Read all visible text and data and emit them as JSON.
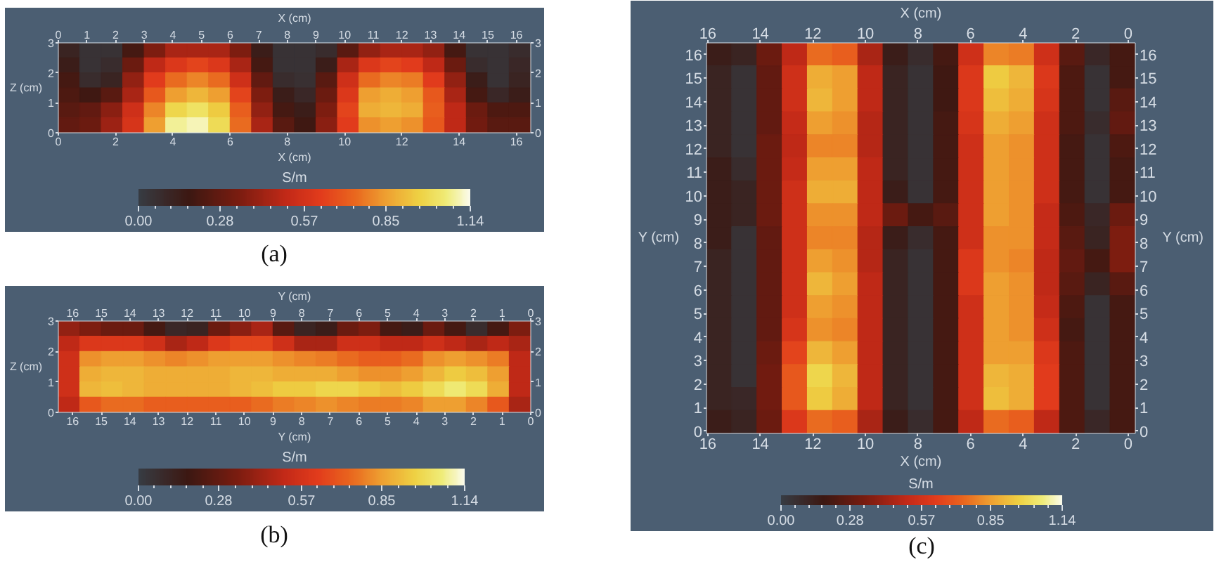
{
  "chart_data": [
    {
      "type": "heatmap",
      "title": "(a)",
      "xlabel": "X (cm)",
      "x2label": "X (cm)",
      "ylabel": "Z (cm)",
      "clabel": "S/m",
      "x": [
        0.375,
        1.125,
        1.875,
        2.625,
        3.375,
        4.125,
        4.875,
        5.625,
        6.375,
        7.125,
        7.875,
        8.625,
        9.375,
        10.125,
        10.875,
        11.625,
        12.375,
        13.125,
        13.875,
        14.625,
        15.375,
        16.125
      ],
      "xlim": [
        0,
        16.5
      ],
      "xticks": [
        0,
        2,
        4,
        6,
        8,
        10,
        12,
        14,
        16
      ],
      "x2lim": [
        0,
        16.5
      ],
      "x2ticks": [
        0,
        1,
        2,
        3,
        4,
        5,
        6,
        7,
        8,
        9,
        10,
        11,
        12,
        13,
        14,
        15,
        16
      ],
      "ylim": [
        0,
        3
      ],
      "yticks": [
        0,
        1,
        2,
        3
      ],
      "y2lim": [
        0,
        3
      ],
      "y2ticks": [
        0,
        1,
        2,
        3
      ],
      "clim": [
        0,
        1.14
      ],
      "cticks": [
        {
          "value": 0,
          "label": "0.00"
        },
        {
          "value": 0.28,
          "label": "0.28"
        },
        {
          "value": 0.57,
          "label": "0.57"
        },
        {
          "value": 0.85,
          "label": "0.85"
        },
        {
          "value": 1.14,
          "label": "1.14"
        }
      ],
      "cells": [
        [
          0.12,
          0.05,
          0.05,
          0.2,
          0.35,
          0.45,
          0.45,
          0.45,
          0.35,
          0.15,
          0.05,
          0.05,
          0.08,
          0.25,
          0.4,
          0.45,
          0.45,
          0.4,
          0.2,
          0.05,
          0.05,
          0.08
        ],
        [
          0.15,
          0.05,
          0.08,
          0.3,
          0.5,
          0.6,
          0.65,
          0.6,
          0.45,
          0.2,
          0.05,
          0.05,
          0.15,
          0.45,
          0.6,
          0.65,
          0.62,
          0.5,
          0.3,
          0.08,
          0.05,
          0.1
        ],
        [
          0.2,
          0.08,
          0.12,
          0.4,
          0.62,
          0.75,
          0.8,
          0.75,
          0.55,
          0.28,
          0.08,
          0.06,
          0.25,
          0.55,
          0.75,
          0.8,
          0.78,
          0.62,
          0.4,
          0.15,
          0.05,
          0.12
        ],
        [
          0.22,
          0.18,
          0.25,
          0.45,
          0.7,
          0.85,
          0.9,
          0.85,
          0.65,
          0.35,
          0.15,
          0.1,
          0.3,
          0.6,
          0.85,
          0.88,
          0.85,
          0.7,
          0.45,
          0.2,
          0.1,
          0.15
        ],
        [
          0.25,
          0.28,
          0.38,
          0.55,
          0.8,
          0.98,
          1.02,
          0.95,
          0.72,
          0.4,
          0.2,
          0.15,
          0.35,
          0.65,
          0.88,
          0.9,
          0.88,
          0.72,
          0.5,
          0.3,
          0.22,
          0.22
        ],
        [
          0.28,
          0.3,
          0.42,
          0.58,
          0.85,
          1.08,
          1.1,
          1.0,
          0.75,
          0.45,
          0.25,
          0.18,
          0.38,
          0.62,
          0.82,
          0.85,
          0.82,
          0.7,
          0.5,
          0.32,
          0.25,
          0.25
        ]
      ]
    },
    {
      "type": "heatmap",
      "title": "(b)",
      "xlabel": "Y (cm)",
      "x2label": "Y (cm)",
      "ylabel": "Z (cm)",
      "clabel": "S/m",
      "x": [
        16.125,
        15.375,
        14.625,
        13.875,
        13.125,
        12.375,
        11.625,
        10.875,
        10.125,
        9.375,
        8.625,
        7.875,
        7.125,
        6.375,
        5.625,
        4.875,
        4.125,
        3.375,
        2.625,
        1.875,
        1.125,
        0.375
      ],
      "xlim": [
        16.5,
        0
      ],
      "xticks": [
        0,
        1,
        2,
        3,
        4,
        5,
        6,
        7,
        8,
        9,
        10,
        11,
        12,
        13,
        14,
        15,
        16
      ],
      "x2lim": [
        16.5,
        0
      ],
      "x2ticks": [
        0,
        1,
        2,
        3,
        4,
        5,
        6,
        7,
        8,
        9,
        10,
        11,
        12,
        13,
        14,
        15,
        16
      ],
      "ylim": [
        0,
        3
      ],
      "yticks": [
        0,
        1,
        2,
        3
      ],
      "y2lim": [
        0,
        3
      ],
      "y2ticks": [
        0,
        1,
        2,
        3
      ],
      "clim": [
        0,
        1.14
      ],
      "cticks": [
        {
          "value": 0,
          "label": "0.00"
        },
        {
          "value": 0.28,
          "label": "0.28"
        },
        {
          "value": 0.57,
          "label": "0.57"
        },
        {
          "value": 0.85,
          "label": "0.85"
        },
        {
          "value": 1.14,
          "label": "1.14"
        }
      ],
      "cells": [
        [
          0.4,
          0.35,
          0.3,
          0.3,
          0.2,
          0.1,
          0.12,
          0.3,
          0.38,
          0.45,
          0.25,
          0.12,
          0.15,
          0.3,
          0.35,
          0.2,
          0.15,
          0.3,
          0.2,
          0.08,
          0.2,
          0.35
        ],
        [
          0.5,
          0.6,
          0.6,
          0.6,
          0.55,
          0.45,
          0.5,
          0.6,
          0.65,
          0.65,
          0.55,
          0.45,
          0.45,
          0.55,
          0.55,
          0.5,
          0.5,
          0.55,
          0.5,
          0.45,
          0.5,
          0.45
        ],
        [
          0.55,
          0.82,
          0.85,
          0.85,
          0.82,
          0.8,
          0.82,
          0.85,
          0.85,
          0.85,
          0.82,
          0.8,
          0.78,
          0.75,
          0.72,
          0.72,
          0.75,
          0.82,
          0.85,
          0.82,
          0.78,
          0.5
        ],
        [
          0.55,
          0.88,
          0.9,
          0.9,
          0.88,
          0.88,
          0.88,
          0.88,
          0.9,
          0.9,
          0.88,
          0.88,
          0.88,
          0.85,
          0.82,
          0.82,
          0.85,
          0.9,
          0.95,
          0.92,
          0.85,
          0.5
        ],
        [
          0.55,
          0.9,
          0.92,
          0.9,
          0.88,
          0.88,
          0.88,
          0.88,
          0.9,
          0.92,
          0.95,
          0.95,
          0.98,
          0.98,
          0.95,
          0.92,
          0.95,
          1.0,
          1.05,
          1.0,
          0.88,
          0.5
        ],
        [
          0.5,
          0.7,
          0.75,
          0.75,
          0.72,
          0.72,
          0.72,
          0.72,
          0.72,
          0.75,
          0.78,
          0.8,
          0.82,
          0.8,
          0.78,
          0.78,
          0.8,
          0.85,
          0.85,
          0.8,
          0.7,
          0.45
        ]
      ]
    },
    {
      "type": "heatmap",
      "title": "(c)",
      "xlabel": "X (cm)",
      "x2label": "X (cm)",
      "ylabel": "Y (cm)",
      "y2label": "Y (cm)",
      "clabel": "S/m",
      "x": [
        15.57,
        14.61,
        13.65,
        12.69,
        11.73,
        10.77,
        9.81,
        8.85,
        7.89,
        6.93,
        5.97,
        5.01,
        4.05,
        3.09,
        2.13,
        1.17,
        0.21
      ],
      "xlim": [
        16.05,
        -0.27
      ],
      "xticks": [
        0,
        2,
        4,
        6,
        8,
        10,
        12,
        14,
        16
      ],
      "x2lim": [
        16.05,
        -0.27
      ],
      "x2ticks": [
        0,
        2,
        4,
        6,
        8,
        10,
        12,
        14,
        16
      ],
      "ylim": [
        -0.1,
        16.5
      ],
      "yticks": [
        0,
        1,
        2,
        3,
        4,
        5,
        6,
        7,
        8,
        9,
        10,
        11,
        12,
        13,
        14,
        15,
        16
      ],
      "y2lim": [
        -0.1,
        16.5
      ],
      "y2ticks": [
        0,
        1,
        2,
        3,
        4,
        5,
        6,
        7,
        8,
        9,
        10,
        11,
        12,
        13,
        14,
        15,
        16
      ],
      "clim": [
        0,
        1.14
      ],
      "cticks": [
        {
          "value": 0,
          "label": "0.00"
        },
        {
          "value": 0.28,
          "label": "0.28"
        },
        {
          "value": 0.57,
          "label": "0.57"
        },
        {
          "value": 0.85,
          "label": "0.85"
        },
        {
          "value": 1.14,
          "label": "1.14"
        }
      ],
      "cells": [
        [
          0.15,
          0.12,
          0.3,
          0.5,
          0.75,
          0.72,
          0.45,
          0.15,
          0.08,
          0.2,
          0.55,
          0.8,
          0.78,
          0.55,
          0.25,
          0.1,
          0.2
        ],
        [
          0.12,
          0.05,
          0.28,
          0.55,
          0.88,
          0.85,
          0.5,
          0.12,
          0.05,
          0.18,
          0.6,
          0.95,
          0.9,
          0.6,
          0.22,
          0.05,
          0.2
        ],
        [
          0.12,
          0.05,
          0.28,
          0.55,
          0.9,
          0.85,
          0.5,
          0.12,
          0.05,
          0.18,
          0.6,
          0.92,
          0.88,
          0.58,
          0.22,
          0.05,
          0.25
        ],
        [
          0.12,
          0.05,
          0.28,
          0.52,
          0.85,
          0.82,
          0.48,
          0.12,
          0.05,
          0.2,
          0.58,
          0.88,
          0.85,
          0.55,
          0.22,
          0.08,
          0.28
        ],
        [
          0.12,
          0.05,
          0.3,
          0.5,
          0.8,
          0.8,
          0.48,
          0.12,
          0.05,
          0.2,
          0.55,
          0.85,
          0.82,
          0.55,
          0.2,
          0.05,
          0.22
        ],
        [
          0.15,
          0.08,
          0.3,
          0.52,
          0.85,
          0.85,
          0.5,
          0.12,
          0.05,
          0.2,
          0.55,
          0.85,
          0.82,
          0.55,
          0.2,
          0.05,
          0.2
        ],
        [
          0.15,
          0.12,
          0.3,
          0.55,
          0.88,
          0.88,
          0.5,
          0.15,
          0.05,
          0.2,
          0.55,
          0.85,
          0.82,
          0.55,
          0.2,
          0.05,
          0.2
        ],
        [
          0.15,
          0.12,
          0.3,
          0.55,
          0.82,
          0.82,
          0.5,
          0.3,
          0.2,
          0.25,
          0.55,
          0.85,
          0.82,
          0.52,
          0.22,
          0.1,
          0.3
        ],
        [
          0.15,
          0.05,
          0.28,
          0.55,
          0.8,
          0.8,
          0.48,
          0.15,
          0.08,
          0.2,
          0.55,
          0.82,
          0.82,
          0.52,
          0.25,
          0.12,
          0.35
        ],
        [
          0.12,
          0.05,
          0.28,
          0.55,
          0.85,
          0.82,
          0.48,
          0.12,
          0.05,
          0.2,
          0.6,
          0.82,
          0.8,
          0.5,
          0.28,
          0.2,
          0.35
        ],
        [
          0.12,
          0.05,
          0.28,
          0.55,
          0.9,
          0.85,
          0.5,
          0.12,
          0.05,
          0.2,
          0.6,
          0.85,
          0.82,
          0.5,
          0.25,
          0.12,
          0.25
        ],
        [
          0.12,
          0.05,
          0.28,
          0.55,
          0.85,
          0.82,
          0.5,
          0.12,
          0.05,
          0.2,
          0.55,
          0.85,
          0.82,
          0.52,
          0.22,
          0.05,
          0.2
        ],
        [
          0.12,
          0.05,
          0.28,
          0.58,
          0.82,
          0.8,
          0.5,
          0.12,
          0.05,
          0.2,
          0.55,
          0.85,
          0.82,
          0.55,
          0.2,
          0.05,
          0.2
        ],
        [
          0.12,
          0.05,
          0.3,
          0.65,
          0.9,
          0.85,
          0.5,
          0.12,
          0.05,
          0.2,
          0.55,
          0.85,
          0.85,
          0.6,
          0.22,
          0.05,
          0.2
        ],
        [
          0.12,
          0.05,
          0.32,
          0.7,
          0.98,
          0.9,
          0.5,
          0.12,
          0.05,
          0.2,
          0.55,
          0.9,
          0.88,
          0.62,
          0.22,
          0.05,
          0.2
        ],
        [
          0.12,
          0.1,
          0.32,
          0.7,
          0.95,
          0.88,
          0.5,
          0.12,
          0.05,
          0.2,
          0.55,
          0.92,
          0.88,
          0.62,
          0.22,
          0.05,
          0.2
        ],
        [
          0.15,
          0.12,
          0.3,
          0.6,
          0.75,
          0.72,
          0.45,
          0.15,
          0.08,
          0.2,
          0.5,
          0.75,
          0.72,
          0.5,
          0.22,
          0.1,
          0.2
        ]
      ]
    }
  ]
}
